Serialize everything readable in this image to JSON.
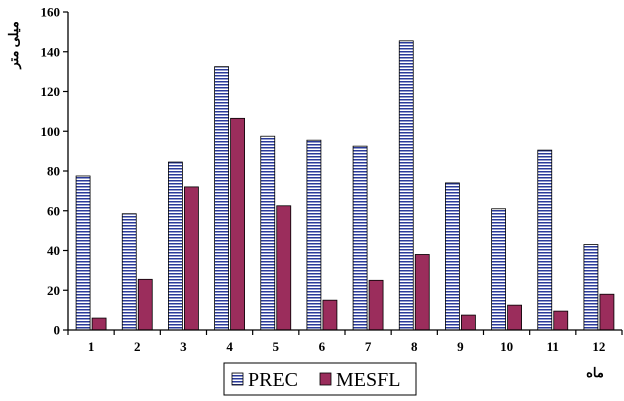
{
  "chart_data": {
    "type": "bar",
    "title": "",
    "xlabel": "ماه",
    "ylabel": "میلی متر",
    "categories": [
      "1",
      "2",
      "3",
      "4",
      "5",
      "6",
      "7",
      "8",
      "9",
      "10",
      "11",
      "12"
    ],
    "series": [
      {
        "name": "PREC",
        "values": [
          77.5,
          58.5,
          84.5,
          132.5,
          97.5,
          95.5,
          92.5,
          145.5,
          74,
          61,
          90.5,
          43
        ],
        "color": "#2a3a9a",
        "fill_pattern": "horizontal-stripes"
      },
      {
        "name": "MESFL",
        "values": [
          6,
          25.5,
          72,
          106.5,
          62.5,
          15,
          25,
          38,
          7.5,
          12.5,
          9.5,
          18
        ],
        "color": "#9b2d5c",
        "fill_pattern": "solid"
      }
    ],
    "ylim": [
      0,
      160
    ],
    "yticks": [
      0,
      20,
      40,
      60,
      80,
      100,
      120,
      140,
      160
    ],
    "grid": false,
    "legend": "bottom-center"
  }
}
